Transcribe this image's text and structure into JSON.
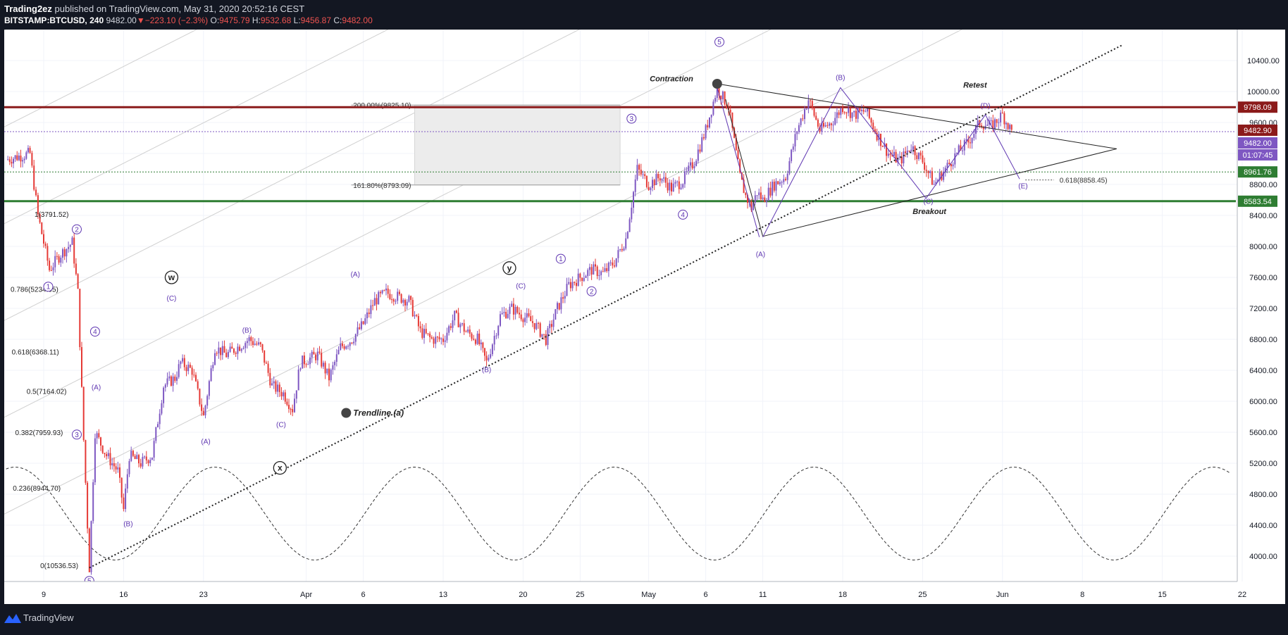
{
  "header": {
    "author": "Trading2ez",
    "published_text": "published on TradingView.com, May 31, 2020 20:52:16 CEST",
    "symbol": "BITSTAMP:BTCUSD, 240",
    "last": "9482.00",
    "change": "−223.10 (−2.3%)",
    "o_label": "O:",
    "o": "9475.79",
    "h_label": "H:",
    "h": "9532.68",
    "l_label": "L:",
    "l": "9456.87",
    "c_label": "C:",
    "c": "9482.00"
  },
  "footer": {
    "brand": "TradingView"
  },
  "colors": {
    "background": "#ffffff",
    "up": "#7e57c2",
    "down": "#e53935",
    "resistance": "#8b1a1a",
    "support": "#2e7d32",
    "wave": "#5e35b1",
    "current_price_line": "#7e57c2"
  },
  "chart_data": {
    "type": "candlestick",
    "symbol": "BITSTAMP:BTCUSD",
    "interval": "240",
    "ylim": [
      3600,
      10800
    ],
    "y_ticks": [
      "10400.00",
      "10000.00",
      "9600.00",
      "9200.00",
      "8800.00",
      "8400.00",
      "8000.00",
      "7600.00",
      "7200.00",
      "6800.00",
      "6400.00",
      "6000.00",
      "5600.00",
      "5200.00",
      "4800.00",
      "4400.00",
      "4000.00"
    ],
    "x_ticks": [
      {
        "label": "9",
        "day": 0
      },
      {
        "label": "16",
        "day": 7
      },
      {
        "label": "23",
        "day": 14
      },
      {
        "label": "Apr",
        "day": 23
      },
      {
        "label": "6",
        "day": 28
      },
      {
        "label": "13",
        "day": 35
      },
      {
        "label": "20",
        "day": 42
      },
      {
        "label": "25",
        "day": 47
      },
      {
        "label": "May",
        "day": 53
      },
      {
        "label": "6",
        "day": 58
      },
      {
        "label": "11",
        "day": 63
      },
      {
        "label": "18",
        "day": 70
      },
      {
        "label": "25",
        "day": 77
      },
      {
        "label": "Jun",
        "day": 84
      },
      {
        "label": "8",
        "day": 91
      },
      {
        "label": "15",
        "day": 98
      },
      {
        "label": "22",
        "day": 105
      }
    ],
    "price_path": [
      [
        -3.3,
        9120
      ],
      [
        -1.2,
        9200
      ],
      [
        -0.5,
        8400
      ],
      [
        0.5,
        7700
      ],
      [
        1.5,
        7900
      ],
      [
        2.5,
        8050
      ],
      [
        3.0,
        7400
      ],
      [
        3.5,
        5500
      ],
      [
        4.0,
        3850
      ],
      [
        4.5,
        5600
      ],
      [
        5.5,
        5300
      ],
      [
        6.5,
        5100
      ],
      [
        7.0,
        4600
      ],
      [
        7.5,
        5300
      ],
      [
        8.5,
        5200
      ],
      [
        9.5,
        5300
      ],
      [
        10.5,
        6200
      ],
      [
        11.5,
        6300
      ],
      [
        12.0,
        6500
      ],
      [
        13.0,
        6400
      ],
      [
        14.0,
        5800
      ],
      [
        15.0,
        6700
      ],
      [
        16.0,
        6600
      ],
      [
        17.0,
        6700
      ],
      [
        18.0,
        6800
      ],
      [
        19.0,
        6700
      ],
      [
        20.0,
        6200
      ],
      [
        21.0,
        6100
      ],
      [
        21.8,
        5900
      ],
      [
        22.5,
        6500
      ],
      [
        24.0,
        6600
      ],
      [
        25.0,
        6300
      ],
      [
        26.0,
        6700
      ],
      [
        27.0,
        6800
      ],
      [
        28.0,
        7000
      ],
      [
        29.0,
        7300
      ],
      [
        30.0,
        7400
      ],
      [
        31.0,
        7350
      ],
      [
        32.0,
        7300
      ],
      [
        33.0,
        6900
      ],
      [
        34.0,
        6800
      ],
      [
        35.0,
        6800
      ],
      [
        36.0,
        7100
      ],
      [
        37.0,
        6900
      ],
      [
        38.0,
        6800
      ],
      [
        38.8,
        6500
      ],
      [
        40.0,
        7100
      ],
      [
        41.0,
        7200
      ],
      [
        42.0,
        7100
      ],
      [
        43.0,
        7000
      ],
      [
        44.0,
        6800
      ],
      [
        45.0,
        7200
      ],
      [
        46.0,
        7500
      ],
      [
        47.0,
        7600
      ],
      [
        48.0,
        7700
      ],
      [
        49.0,
        7650
      ],
      [
        50.0,
        7800
      ],
      [
        51.0,
        8100
      ],
      [
        52.0,
        9000
      ],
      [
        53.0,
        8800
      ],
      [
        54.0,
        8900
      ],
      [
        55.0,
        8750
      ],
      [
        56.0,
        8850
      ],
      [
        57.0,
        9100
      ],
      [
        58.0,
        9500
      ],
      [
        59.0,
        10050
      ],
      [
        60.0,
        9800
      ],
      [
        61.0,
        8900
      ],
      [
        61.5,
        8650
      ],
      [
        62.0,
        8500
      ],
      [
        62.5,
        8700
      ],
      [
        63.0,
        8600
      ],
      [
        64.0,
        8800
      ],
      [
        65.0,
        8900
      ],
      [
        66.0,
        9500
      ],
      [
        67.0,
        9900
      ],
      [
        68.0,
        9500
      ],
      [
        69.0,
        9600
      ],
      [
        70.0,
        9800
      ],
      [
        71.0,
        9700
      ],
      [
        72.0,
        9750
      ],
      [
        73.0,
        9450
      ],
      [
        74.0,
        9200
      ],
      [
        75.0,
        9100
      ],
      [
        76.0,
        9300
      ],
      [
        77.0,
        9100
      ],
      [
        78.0,
        8800
      ],
      [
        79.0,
        9000
      ],
      [
        80.0,
        9200
      ],
      [
        81.0,
        9350
      ],
      [
        82.0,
        9600
      ],
      [
        83.0,
        9550
      ],
      [
        84.0,
        9700
      ],
      [
        84.8,
        9482
      ]
    ],
    "horizontal_levels": [
      {
        "price": 9798.09,
        "label": "9798.09",
        "color": "#8b1a1a"
      },
      {
        "price": 8583.54,
        "label": "8583.54",
        "color": "#2e7d32"
      },
      {
        "price": 9482.0,
        "label": "9482.00",
        "color": "#7e57c2"
      },
      {
        "price": 8961.76,
        "label": "8961.76",
        "color": "#2e7d32"
      }
    ],
    "price_labels": [
      {
        "price": 9482.9,
        "text": "9482.90",
        "color": "#8b1a1a"
      },
      {
        "price": 9482.0,
        "text": "9482.00",
        "color": "#7e57c2"
      },
      {
        "price": 9330,
        "text": "01:07:45",
        "color": "#7e57c2"
      }
    ],
    "fib_left": [
      {
        "text": "1(3791.52)",
        "day": -0.8,
        "price": 8420
      },
      {
        "text": "0.786(5234.95)",
        "day": -2.9,
        "price": 7450
      },
      {
        "text": "0.618(6368.11)",
        "day": -2.8,
        "price": 6640
      },
      {
        "text": "0.5(7164.02)",
        "day": -1.5,
        "price": 6130
      },
      {
        "text": "0.382(7959.93)",
        "day": -2.5,
        "price": 5600
      },
      {
        "text": "0.236(8944.70)",
        "day": -2.7,
        "price": 4880
      },
      {
        "text": "0(10536.53)",
        "day": -0.3,
        "price": 3880
      }
    ],
    "extension_box": {
      "x0": 32.5,
      "x1": 50.5,
      "p_top": 9825.1,
      "p_bot": 8793.09,
      "label_top": "200.00%(9825.10)",
      "label_bot": "161.80%(8793.09)"
    },
    "fib_right": {
      "text": "0.618(8858.45)",
      "price": 8858.45,
      "x0": 86,
      "x1": 88.5
    },
    "trendline": {
      "x0": 4.0,
      "p0": 3850,
      "x1": 94.5,
      "p1": 10600
    },
    "trendline_label": {
      "text": "Trendline (a)",
      "day": 26.5,
      "price": 5850
    },
    "triangle": {
      "ax": 59.0,
      "ap": 10100,
      "bx": 63.0,
      "bp": 8130,
      "apex_x": 94,
      "apex_p": 9260
    },
    "triangle_wave": [
      [
        63.0,
        8120
      ],
      [
        69.8,
        10050
      ],
      [
        77.3,
        8620
      ],
      [
        82.5,
        9700
      ],
      [
        85.5,
        8870
      ]
    ],
    "contraction_wave": [
      [
        59.0,
        10050
      ],
      [
        62.7,
        8120
      ]
    ],
    "sine": {
      "day0": -3.3,
      "day1": 104,
      "p_mid": 4550,
      "amp": 600,
      "period": 17.5,
      "phase_peak_day": 15.0
    },
    "annotations": [
      {
        "text": "Contraction",
        "day": 55.0,
        "price": 10130,
        "italic": true,
        "bold": true
      },
      {
        "text": "Retest",
        "day": 81.6,
        "price": 10050,
        "italic": true,
        "bold": true
      },
      {
        "text": "Breakout",
        "day": 77.6,
        "price": 8420,
        "italic": true,
        "bold": true
      }
    ],
    "markers": [
      {
        "day": 59.0,
        "price": 10100
      },
      {
        "day": 26.5,
        "price": 5850
      }
    ],
    "wave_labels": [
      {
        "t": "2",
        "d": 2.9,
        "p": 8220,
        "c": 1
      },
      {
        "t": "1",
        "d": 0.4,
        "p": 7480,
        "c": 1
      },
      {
        "t": "4",
        "d": 4.5,
        "p": 6900,
        "c": 1
      },
      {
        "t": "3",
        "d": 2.9,
        "p": 5570,
        "c": 1
      },
      {
        "t": "5",
        "d": 4.0,
        "p": 3680,
        "c": 1
      },
      {
        "t": "(A)",
        "d": 4.6,
        "p": 6180,
        "c": 0
      },
      {
        "t": "(B)",
        "d": 7.4,
        "p": 4420,
        "c": 0
      },
      {
        "t": "(C)",
        "d": 11.2,
        "p": 7330,
        "c": 0
      },
      {
        "t": "(A)",
        "d": 14.2,
        "p": 5480,
        "c": 0
      },
      {
        "t": "(B)",
        "d": 17.8,
        "p": 6920,
        "c": 0
      },
      {
        "t": "(C)",
        "d": 20.8,
        "p": 5700,
        "c": 0
      },
      {
        "t": "(A)",
        "d": 27.3,
        "p": 7640,
        "c": 0
      },
      {
        "t": "(B)",
        "d": 38.8,
        "p": 6410,
        "c": 0
      },
      {
        "t": "(C)",
        "d": 41.8,
        "p": 7490,
        "c": 0
      },
      {
        "t": "1",
        "d": 45.3,
        "p": 7840,
        "c": 1
      },
      {
        "t": "2",
        "d": 48.0,
        "p": 7420,
        "c": 1
      },
      {
        "t": "3",
        "d": 51.5,
        "p": 9650,
        "c": 1
      },
      {
        "t": "4",
        "d": 56.0,
        "p": 8410,
        "c": 1
      },
      {
        "t": "5",
        "d": 59.2,
        "p": 10640,
        "c": 1
      },
      {
        "t": "(A)",
        "d": 62.8,
        "p": 7900,
        "c": 0
      },
      {
        "t": "(B)",
        "d": 69.8,
        "p": 10180,
        "c": 0
      },
      {
        "t": "(C)",
        "d": 77.5,
        "p": 8580,
        "c": 0
      },
      {
        "t": "(D)",
        "d": 82.5,
        "p": 9820,
        "c": 0
      },
      {
        "t": "(E)",
        "d": 85.8,
        "p": 8780,
        "c": 0
      }
    ],
    "wxy_labels": [
      {
        "t": "w",
        "d": 11.2,
        "p": 7600
      },
      {
        "t": "x",
        "d": 20.7,
        "p": 5140
      },
      {
        "t": "y",
        "d": 40.8,
        "p": 7720
      }
    ]
  }
}
